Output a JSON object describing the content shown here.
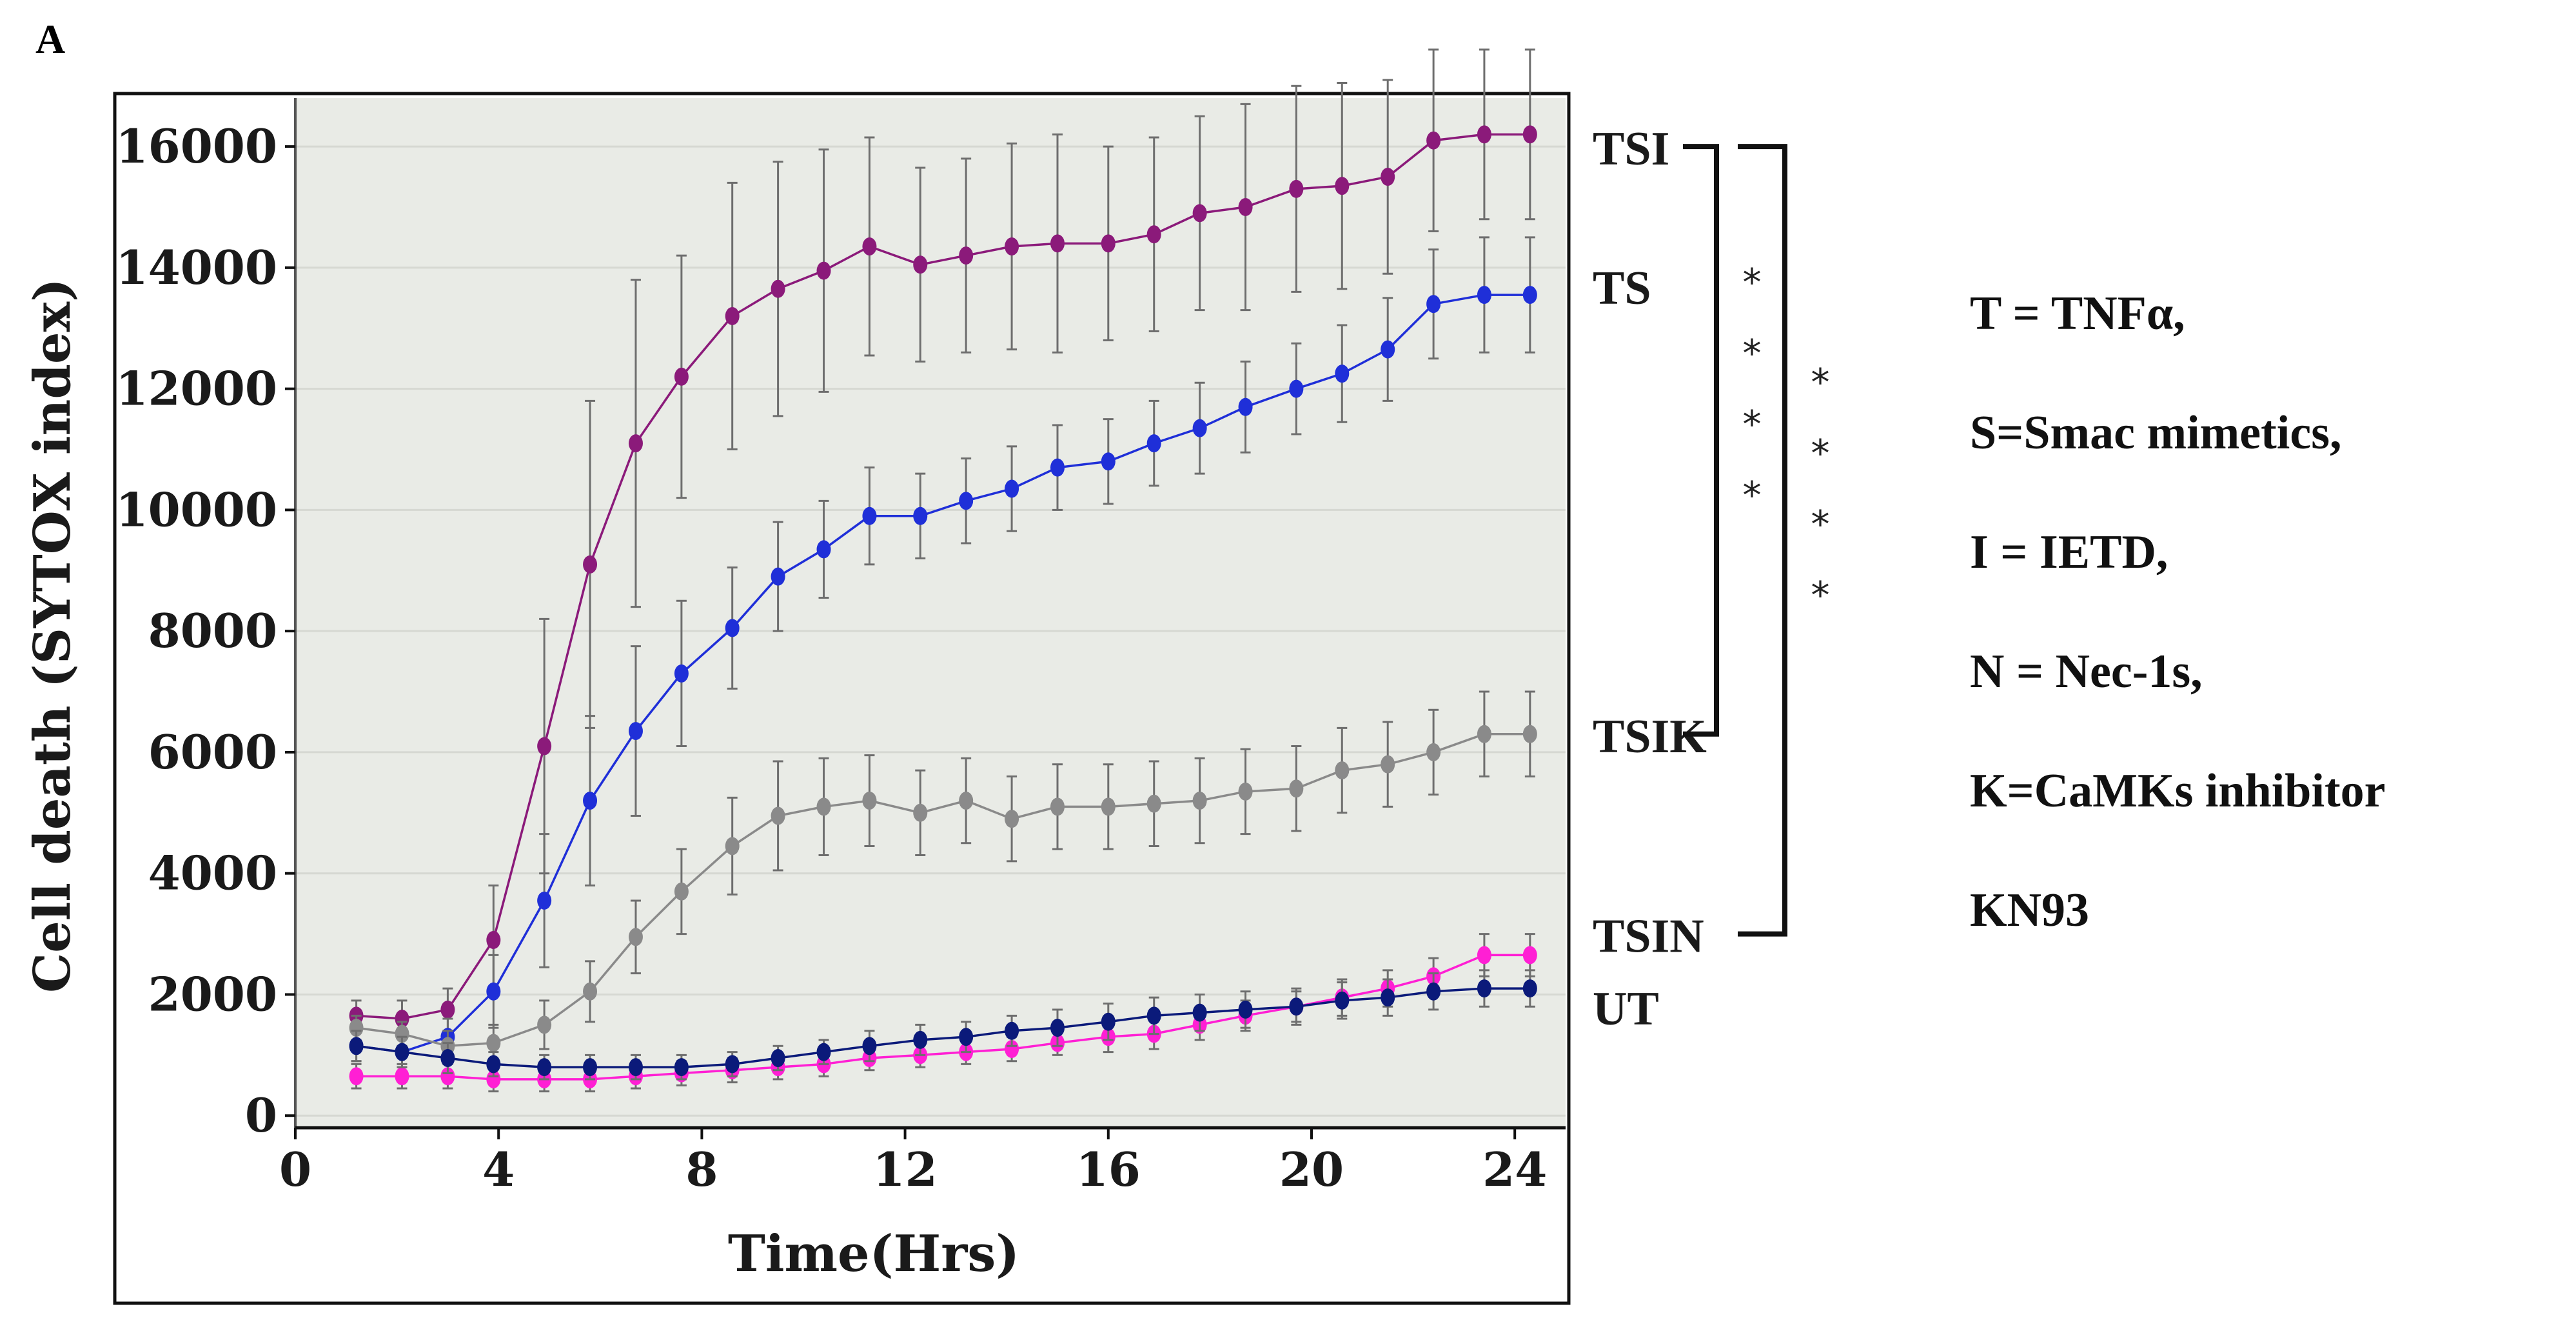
{
  "panel_label": "A",
  "chart_data": {
    "type": "line",
    "title": "",
    "xlabel": "Time(Hrs)",
    "ylabel": "Cell death (SYTOX index)",
    "xlim": [
      0,
      25
    ],
    "ylim": [
      -200,
      16800
    ],
    "xticks": [
      0,
      4,
      8,
      12,
      16,
      20,
      24
    ],
    "yticks": [
      0,
      2000,
      4000,
      6000,
      8000,
      10000,
      12000,
      14000,
      16000
    ],
    "x": [
      1.2,
      2.1,
      3.0,
      3.9,
      4.9,
      5.8,
      6.7,
      7.6,
      8.6,
      9.5,
      10.4,
      11.3,
      12.3,
      13.2,
      14.1,
      15.0,
      16.0,
      16.9,
      17.8,
      18.7,
      19.7,
      20.6,
      21.5,
      22.4,
      23.4,
      24.3
    ],
    "series": [
      {
        "name": "TSI",
        "color": "#8b1a7a",
        "values": [
          1650,
          1600,
          1750,
          2900,
          6100,
          9100,
          11100,
          12200,
          13200,
          13650,
          13950,
          14350,
          14050,
          14200,
          14350,
          14400,
          14400,
          14550,
          14900,
          15000,
          15300,
          15350,
          15500,
          16100,
          16200,
          16200
        ],
        "errors": [
          250,
          300,
          350,
          900,
          2100,
          2700,
          2700,
          2000,
          2200,
          2100,
          2000,
          1800,
          1600,
          1600,
          1700,
          1800,
          1600,
          1600,
          1600,
          1700,
          1700,
          1700,
          1600,
          1500,
          1400,
          1400
        ]
      },
      {
        "name": "TS",
        "color": "#1f2fd8",
        "values": [
          1150,
          1050,
          1300,
          2050,
          3550,
          5200,
          6350,
          7300,
          8050,
          8900,
          9350,
          9900,
          9900,
          10150,
          10350,
          10700,
          10800,
          11100,
          11350,
          11700,
          12000,
          12250,
          12650,
          13400,
          13550,
          13550
        ],
        "errors": [
          250,
          250,
          300,
          600,
          1100,
          1400,
          1400,
          1200,
          1000,
          900,
          800,
          800,
          700,
          700,
          700,
          700,
          700,
          700,
          750,
          750,
          750,
          800,
          850,
          900,
          950,
          950
        ]
      },
      {
        "name": "TSIK",
        "color": "#8a8a8a",
        "values": [
          1450,
          1350,
          1150,
          1200,
          1500,
          2050,
          2950,
          3700,
          4450,
          4950,
          5100,
          5200,
          5000,
          5200,
          4900,
          5100,
          5100,
          5150,
          5200,
          5350,
          5400,
          5700,
          5800,
          6000,
          6300,
          6300
        ],
        "errors": [
          200,
          200,
          250,
          300,
          400,
          500,
          600,
          700,
          800,
          900,
          800,
          750,
          700,
          700,
          700,
          700,
          700,
          700,
          700,
          700,
          700,
          700,
          700,
          700,
          700,
          700
        ]
      },
      {
        "name": "TSIN",
        "color": "#ff1fd4",
        "values": [
          650,
          650,
          650,
          600,
          600,
          600,
          650,
          700,
          750,
          800,
          850,
          950,
          1000,
          1050,
          1100,
          1200,
          1300,
          1350,
          1500,
          1650,
          1800,
          1950,
          2100,
          2300,
          2650,
          2650
        ],
        "errors": [
          200,
          200,
          200,
          200,
          200,
          200,
          200,
          200,
          200,
          200,
          200,
          200,
          200,
          200,
          200,
          200,
          250,
          250,
          250,
          250,
          250,
          300,
          300,
          300,
          350,
          350
        ]
      },
      {
        "name": "UT",
        "color": "#0b1a7a",
        "values": [
          1150,
          1050,
          950,
          850,
          800,
          800,
          800,
          800,
          850,
          950,
          1050,
          1150,
          1250,
          1300,
          1400,
          1450,
          1550,
          1650,
          1700,
          1750,
          1800,
          1900,
          1950,
          2050,
          2100,
          2100
        ],
        "errors": [
          250,
          250,
          250,
          200,
          200,
          200,
          200,
          200,
          200,
          200,
          200,
          250,
          250,
          250,
          250,
          300,
          300,
          300,
          300,
          300,
          300,
          300,
          300,
          300,
          300,
          300
        ]
      }
    ],
    "series_labels": [
      {
        "text": "TSI",
        "value": 16000
      },
      {
        "text": "TS",
        "value": 13700
      },
      {
        "text": "TSIK",
        "value": 6300
      },
      {
        "text": "TSIN",
        "value": 3000
      },
      {
        "text": "UT",
        "value": 1800
      }
    ],
    "significance": {
      "inner": {
        "from": "TSI",
        "to": "TSIK",
        "stars": [
          "*",
          "*",
          "*",
          "*"
        ]
      },
      "outer": {
        "from": "TSI",
        "to": "TSIN",
        "stars": [
          "*",
          "*",
          "*",
          "*"
        ]
      }
    },
    "legend": [
      "T = TNFα,",
      "S=Smac mimetics,",
      "I = IETD,",
      "N = Nec-1s,",
      "K=CaMKs     inhibitor",
      "KN93"
    ]
  }
}
